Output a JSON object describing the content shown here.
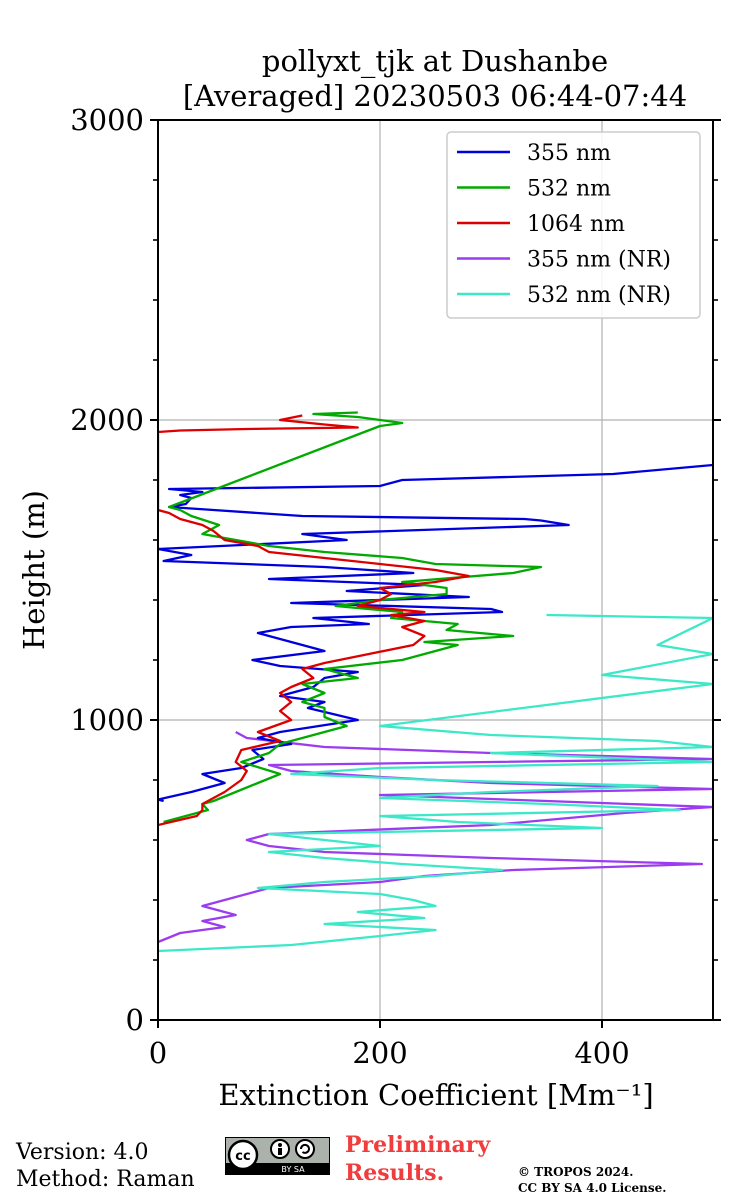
{
  "chart_data": {
    "type": "line",
    "title": "pollyxt_tjk at Dushanbe",
    "subtitle": "[Averaged] 20230503 06:44-07:44",
    "xlabel": "Extinction Coefficient [Mm⁻¹]",
    "ylabel": "Height (m)",
    "xlim": [
      0,
      500
    ],
    "ylim": [
      0,
      3000
    ],
    "x_ticks": [
      "0",
      "200",
      "400"
    ],
    "y_ticks": [
      "0",
      "1000",
      "2000",
      "3000"
    ],
    "grid": true,
    "legend_position": "top-right",
    "series": [
      {
        "name": "355 nm",
        "color": "#0000dd",
        "points": [
          [
            5,
            730
          ],
          [
            0,
            735
          ],
          [
            30,
            760
          ],
          [
            60,
            790
          ],
          [
            40,
            820
          ],
          [
            75,
            840
          ],
          [
            95,
            870
          ],
          [
            85,
            900
          ],
          [
            120,
            920
          ],
          [
            90,
            940
          ],
          [
            110,
            960
          ],
          [
            180,
            1000
          ],
          [
            135,
            1040
          ],
          [
            150,
            1060
          ],
          [
            110,
            1080
          ],
          [
            140,
            1110
          ],
          [
            150,
            1140
          ],
          [
            180,
            1160
          ],
          [
            110,
            1180
          ],
          [
            85,
            1200
          ],
          [
            150,
            1230
          ],
          [
            120,
            1260
          ],
          [
            90,
            1290
          ],
          [
            120,
            1310
          ],
          [
            190,
            1320
          ],
          [
            140,
            1340
          ],
          [
            310,
            1360
          ],
          [
            300,
            1370
          ],
          [
            120,
            1390
          ],
          [
            280,
            1410
          ],
          [
            170,
            1430
          ],
          [
            240,
            1450
          ],
          [
            100,
            1470
          ],
          [
            230,
            1490
          ],
          [
            150,
            1510
          ],
          [
            5,
            1530
          ],
          [
            30,
            1550
          ],
          [
            0,
            1570
          ],
          [
            170,
            1600
          ],
          [
            130,
            1620
          ],
          [
            370,
            1650
          ],
          [
            345,
            1665
          ],
          [
            330,
            1670
          ],
          [
            130,
            1680
          ],
          [
            50,
            1700
          ],
          [
            10,
            1710
          ],
          [
            25,
            1720
          ],
          [
            30,
            1740
          ],
          [
            20,
            1750
          ],
          [
            40,
            1760
          ],
          [
            10,
            1770
          ],
          [
            200,
            1780
          ],
          [
            220,
            1800
          ],
          [
            410,
            1820
          ],
          [
            500,
            1850
          ]
        ]
      },
      {
        "name": "532 nm",
        "color": "#00aa00",
        "points": [
          [
            5,
            660
          ],
          [
            45,
            700
          ],
          [
            40,
            720
          ],
          [
            50,
            730
          ],
          [
            70,
            760
          ],
          [
            90,
            790
          ],
          [
            110,
            820
          ],
          [
            75,
            860
          ],
          [
            100,
            890
          ],
          [
            110,
            920
          ],
          [
            140,
            950
          ],
          [
            170,
            980
          ],
          [
            150,
            1010
          ],
          [
            150,
            1040
          ],
          [
            130,
            1060
          ],
          [
            150,
            1090
          ],
          [
            130,
            1120
          ],
          [
            180,
            1140
          ],
          [
            150,
            1170
          ],
          [
            220,
            1200
          ],
          [
            250,
            1230
          ],
          [
            270,
            1250
          ],
          [
            240,
            1260
          ],
          [
            320,
            1280
          ],
          [
            260,
            1300
          ],
          [
            270,
            1320
          ],
          [
            210,
            1340
          ],
          [
            220,
            1360
          ],
          [
            160,
            1380
          ],
          [
            200,
            1400
          ],
          [
            260,
            1420
          ],
          [
            260,
            1440
          ],
          [
            220,
            1460
          ],
          [
            320,
            1490
          ],
          [
            345,
            1510
          ],
          [
            250,
            1520
          ],
          [
            220,
            1540
          ],
          [
            150,
            1560
          ],
          [
            100,
            1580
          ],
          [
            70,
            1600
          ],
          [
            40,
            1620
          ],
          [
            55,
            1650
          ],
          [
            30,
            1680
          ],
          [
            20,
            1700
          ],
          [
            10,
            1710
          ],
          [
            200,
            1980
          ],
          [
            220,
            1990
          ],
          [
            200,
            2000
          ],
          [
            180,
            2010
          ],
          [
            140,
            2020
          ],
          [
            180,
            2025
          ]
        ]
      },
      {
        "name": "1064 nm",
        "color": "#dd0000",
        "points": [
          [
            0,
            650
          ],
          [
            35,
            680
          ],
          [
            40,
            700
          ],
          [
            40,
            720
          ],
          [
            60,
            760
          ],
          [
            75,
            800
          ],
          [
            80,
            830
          ],
          [
            70,
            860
          ],
          [
            75,
            900
          ],
          [
            110,
            930
          ],
          [
            90,
            960
          ],
          [
            120,
            1000
          ],
          [
            110,
            1030
          ],
          [
            120,
            1060
          ],
          [
            110,
            1090
          ],
          [
            120,
            1110
          ],
          [
            140,
            1140
          ],
          [
            130,
            1170
          ],
          [
            150,
            1190
          ],
          [
            190,
            1220
          ],
          [
            230,
            1250
          ],
          [
            240,
            1280
          ],
          [
            220,
            1310
          ],
          [
            240,
            1330
          ],
          [
            210,
            1350
          ],
          [
            240,
            1360
          ],
          [
            180,
            1380
          ],
          [
            200,
            1400
          ],
          [
            210,
            1420
          ],
          [
            200,
            1440
          ],
          [
            250,
            1460
          ],
          [
            280,
            1480
          ],
          [
            250,
            1500
          ],
          [
            200,
            1520
          ],
          [
            150,
            1540
          ],
          [
            100,
            1560
          ],
          [
            90,
            1580
          ],
          [
            60,
            1600
          ],
          [
            50,
            1630
          ],
          [
            40,
            1650
          ],
          [
            20,
            1670
          ],
          [
            10,
            1690
          ],
          [
            0,
            1700
          ],
          [
            0,
            1960
          ],
          [
            20,
            1965
          ],
          [
            80,
            1970
          ],
          [
            180,
            1975
          ],
          [
            150,
            1985
          ],
          [
            110,
            2000
          ],
          [
            130,
            2015
          ]
        ]
      },
      {
        "name": "355 nm (NR)",
        "color": "#9b3cf0",
        "points": [
          [
            0,
            260
          ],
          [
            20,
            290
          ],
          [
            60,
            310
          ],
          [
            40,
            330
          ],
          [
            70,
            350
          ],
          [
            40,
            380
          ],
          [
            70,
            410
          ],
          [
            100,
            440
          ],
          [
            200,
            460
          ],
          [
            240,
            480
          ],
          [
            320,
            500
          ],
          [
            490,
            520
          ],
          [
            300,
            540
          ],
          [
            150,
            560
          ],
          [
            100,
            580
          ],
          [
            80,
            600
          ],
          [
            100,
            620
          ],
          [
            300,
            650
          ],
          [
            420,
            690
          ],
          [
            500,
            710
          ],
          [
            350,
            730
          ],
          [
            200,
            750
          ],
          [
            500,
            770
          ],
          [
            300,
            790
          ],
          [
            200,
            810
          ],
          [
            120,
            830
          ],
          [
            100,
            850
          ],
          [
            500,
            870
          ],
          [
            300,
            890
          ],
          [
            150,
            910
          ],
          [
            80,
            940
          ],
          [
            70,
            960
          ]
        ]
      },
      {
        "name": "532 nm (NR)",
        "color": "#3ce8c8",
        "points": [
          [
            0,
            230
          ],
          [
            120,
            250
          ],
          [
            200,
            280
          ],
          [
            250,
            300
          ],
          [
            150,
            320
          ],
          [
            240,
            340
          ],
          [
            180,
            360
          ],
          [
            250,
            380
          ],
          [
            230,
            400
          ],
          [
            200,
            420
          ],
          [
            90,
            440
          ],
          [
            150,
            460
          ],
          [
            250,
            480
          ],
          [
            310,
            500
          ],
          [
            220,
            520
          ],
          [
            150,
            540
          ],
          [
            100,
            560
          ],
          [
            200,
            580
          ],
          [
            150,
            600
          ],
          [
            100,
            620
          ],
          [
            400,
            640
          ],
          [
            270,
            660
          ],
          [
            200,
            680
          ],
          [
            470,
            700
          ],
          [
            350,
            720
          ],
          [
            200,
            740
          ],
          [
            300,
            760
          ],
          [
            450,
            780
          ],
          [
            250,
            800
          ],
          [
            120,
            820
          ],
          [
            200,
            840
          ],
          [
            500,
            860
          ],
          [
            300,
            890
          ],
          [
            500,
            910
          ],
          [
            450,
            930
          ],
          [
            300,
            950
          ],
          [
            200,
            980
          ],
          [
            500,
            1120
          ],
          [
            400,
            1150
          ],
          [
            500,
            1220
          ],
          [
            450,
            1250
          ],
          [
            500,
            1340
          ],
          [
            350,
            1350
          ]
        ]
      }
    ]
  },
  "footer": {
    "version": "Version: 4.0",
    "method": "Method: Raman",
    "preliminary_line1": "Preliminary",
    "preliminary_line2": "Results.",
    "copyright_line1": "© TROPOS 2024.",
    "copyright_line2": "CC BY SA 4.0 License.",
    "cc_badge_text": "BY  SA"
  }
}
